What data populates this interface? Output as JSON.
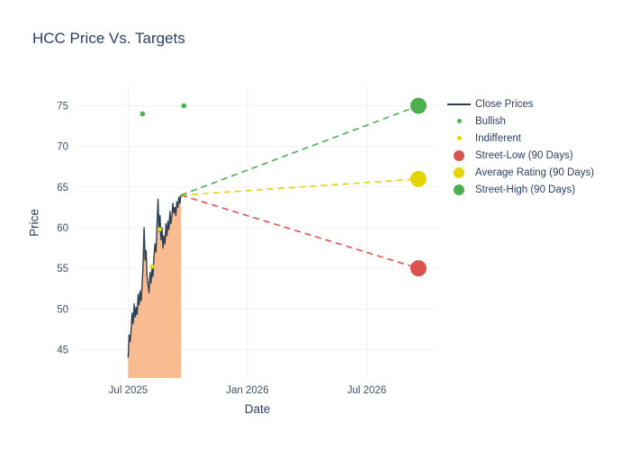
{
  "title": "HCC Price Vs. Targets",
  "legend": {
    "items": [
      {
        "label": "Close Prices",
        "swatch": "line",
        "color": "#2c3e50"
      },
      {
        "label": "Bullish",
        "swatch": "dot-small",
        "color": "#4caf50"
      },
      {
        "label": "Indifferent",
        "swatch": "dot-small",
        "color": "#e4d500"
      },
      {
        "label": "Street-Low (90 Days)",
        "swatch": "dot-large",
        "color": "#d9534f"
      },
      {
        "label": "Average Rating (90 Days)",
        "swatch": "dot-large",
        "color": "#e4d500"
      },
      {
        "label": "Street-High (90 Days)",
        "swatch": "dot-large",
        "color": "#4caf50"
      }
    ]
  },
  "chart_data": {
    "type": "line",
    "title": "HCC Price Vs. Targets",
    "xlabel": "Date",
    "ylabel": "Price",
    "x_tick_labels": [
      "Jul 2025",
      "Jan 2026",
      "Jul 2026"
    ],
    "x_tick_months": [
      0,
      6,
      12
    ],
    "y_ticks": [
      45,
      50,
      55,
      60,
      65,
      70,
      75
    ],
    "xlim_months": [
      -2.6,
      15.6
    ],
    "ylim": [
      41.5,
      77.5
    ],
    "grid": true,
    "legend_position": "right",
    "close_prices": {
      "name": "Close Prices",
      "line_color": "#2c3e50",
      "fill_color": "#f9bb90",
      "x": [
        0,
        0.05,
        0.1,
        0.15,
        0.2,
        0.25,
        0.3,
        0.35,
        0.4,
        0.45,
        0.5,
        0.55,
        0.6,
        0.65,
        0.7,
        0.75,
        0.8,
        0.85,
        0.9,
        0.95,
        1,
        1.05,
        1.1,
        1.15,
        1.2,
        1.25,
        1.3,
        1.35,
        1.4,
        1.45,
        1.5,
        1.55,
        1.6,
        1.65,
        1.7,
        1.75,
        1.8,
        1.85,
        1.9,
        1.95,
        2,
        2.05,
        2.1,
        2.15,
        2.2,
        2.25,
        2.3,
        2.35,
        2.4,
        2.45,
        2.5,
        2.55,
        2.6,
        2.65
      ],
      "y": [
        44.0,
        46.8,
        46.0,
        47.5,
        49.5,
        48.2,
        50.6,
        49.0,
        50.2,
        49.3,
        51.8,
        50.5,
        52.2,
        51.0,
        53.0,
        55.5,
        60.0,
        56.0,
        57.2,
        54.0,
        53.0,
        52.0,
        54.5,
        53.2,
        55.0,
        54.0,
        56.5,
        58.0,
        57.0,
        60.5,
        63.5,
        59.5,
        61.5,
        58.5,
        60.0,
        57.5,
        59.0,
        58.0,
        60.5,
        59.0,
        60.8,
        59.8,
        62.0,
        60.5,
        61.5,
        63.0,
        61.8,
        62.5,
        61.5,
        63.2,
        62.5,
        63.8,
        63.0,
        64.0
      ]
    },
    "bullish_markers": {
      "name": "Bullish",
      "color": "#4caf50",
      "x": [
        0.72,
        2.8
      ],
      "y": [
        74,
        75
      ]
    },
    "indifferent_markers": {
      "name": "Indifferent",
      "color": "#e4d500",
      "x": [
        1.2,
        1.58
      ],
      "y": [
        55.2,
        59.8
      ]
    },
    "projections": {
      "start": {
        "x": 2.65,
        "y": 64
      },
      "end_x": 14.6,
      "targets": [
        {
          "name": "Street-Low (90 Days)",
          "value": 55,
          "color": "#d9534f"
        },
        {
          "name": "Average Rating (90 Days)",
          "value": 66,
          "color": "#e4d500"
        },
        {
          "name": "Street-High (90 Days)",
          "value": 75,
          "color": "#4caf50"
        }
      ]
    }
  }
}
